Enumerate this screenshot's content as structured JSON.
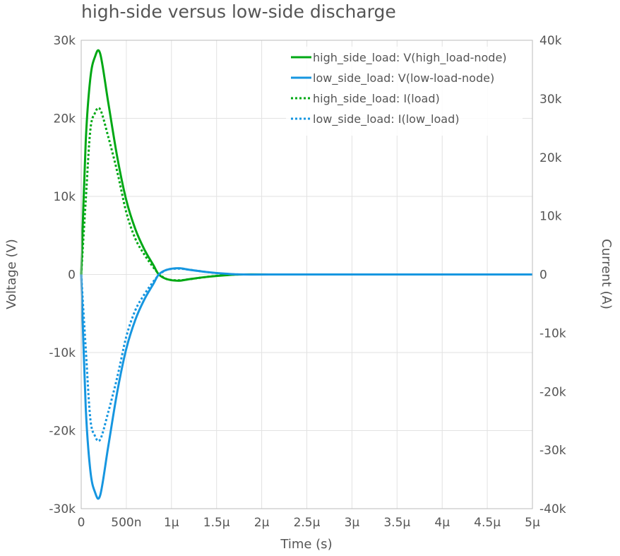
{
  "chart_data": {
    "type": "line",
    "title": "high-side versus low-side discharge",
    "xlabel": "Time (s)",
    "ylabel": "Voltage (V)",
    "y2label": "Current (A)",
    "xlim": [
      0,
      5e-06
    ],
    "ylim": [
      -30000,
      30000
    ],
    "y2lim": [
      -40000,
      40000
    ],
    "grid": true,
    "legend_position": "top-right",
    "x_ticks": [
      {
        "v": 0,
        "label": "0"
      },
      {
        "v": 5e-07,
        "label": "500n"
      },
      {
        "v": 1e-06,
        "label": "1μ"
      },
      {
        "v": 1.5e-06,
        "label": "1.5μ"
      },
      {
        "v": 2e-06,
        "label": "2μ"
      },
      {
        "v": 2.5e-06,
        "label": "2.5μ"
      },
      {
        "v": 3e-06,
        "label": "3μ"
      },
      {
        "v": 3.5e-06,
        "label": "3.5μ"
      },
      {
        "v": 4e-06,
        "label": "4μ"
      },
      {
        "v": 4.5e-06,
        "label": "4.5μ"
      },
      {
        "v": 5e-06,
        "label": "5μ"
      }
    ],
    "y_ticks": [
      {
        "v": 30000,
        "label": "30k"
      },
      {
        "v": 20000,
        "label": "20k"
      },
      {
        "v": 10000,
        "label": "10k"
      },
      {
        "v": 0,
        "label": "0"
      },
      {
        "v": -10000,
        "label": "-10k"
      },
      {
        "v": -20000,
        "label": "-20k"
      },
      {
        "v": -30000,
        "label": "-30k"
      }
    ],
    "y2_ticks": [
      {
        "v": 40000,
        "label": "40k"
      },
      {
        "v": 30000,
        "label": "30k"
      },
      {
        "v": 20000,
        "label": "20k"
      },
      {
        "v": 10000,
        "label": "10k"
      },
      {
        "v": 0,
        "label": "0"
      },
      {
        "v": -10000,
        "label": "-10k"
      },
      {
        "v": -20000,
        "label": "-20k"
      },
      {
        "v": -30000,
        "label": "-30k"
      },
      {
        "v": -40000,
        "label": "-40k"
      }
    ],
    "series": [
      {
        "name": "high_side_load: V(high_load-node)",
        "axis": "left",
        "color": "#00a814",
        "dash": false,
        "x": [
          0,
          5e-08,
          1e-07,
          1.5e-07,
          2.1e-07,
          3e-07,
          4e-07,
          5e-07,
          6e-07,
          7e-07,
          8e-07,
          8.6e-07,
          9.5e-07,
          1.08e-06,
          1.2e-06,
          1.4e-06,
          1.6e-06,
          1.8e-06,
          2.5e-06,
          5e-06
        ],
        "y": [
          0,
          17000,
          25000,
          27800,
          28300,
          22000,
          15000,
          9500,
          5800,
          3200,
          1200,
          0,
          -600,
          -800,
          -600,
          -300,
          -100,
          0,
          0,
          0
        ]
      },
      {
        "name": "low_side_load: V(low-load-node)",
        "axis": "left",
        "color": "#1696e0",
        "dash": false,
        "x": [
          0,
          5e-08,
          1e-07,
          1.5e-07,
          2.1e-07,
          3e-07,
          4e-07,
          5e-07,
          6e-07,
          7e-07,
          8e-07,
          8.6e-07,
          9.5e-07,
          1.08e-06,
          1.2e-06,
          1.4e-06,
          1.6e-06,
          1.8e-06,
          2.5e-06,
          5e-06
        ],
        "y": [
          0,
          -17000,
          -25000,
          -27800,
          -28300,
          -22000,
          -15000,
          -9500,
          -5800,
          -3200,
          -1200,
          0,
          600,
          800,
          600,
          300,
          100,
          0,
          0,
          0
        ]
      },
      {
        "name": "high_side_load: I(load)",
        "axis": "right",
        "color": "#00a814",
        "dash": true,
        "x": [
          0,
          5e-08,
          1e-07,
          1.5e-07,
          2.1e-07,
          3e-07,
          4e-07,
          5e-07,
          6e-07,
          7e-07,
          8e-07,
          8.7e-07,
          9.5e-07,
          1.08e-06,
          1.2e-06,
          1.4e-06,
          1.6e-06,
          1.8e-06,
          2.5e-06,
          5e-06
        ],
        "y": [
          0,
          12600,
          24500,
          27500,
          28200,
          23500,
          17500,
          10600,
          6100,
          3400,
          1200,
          0,
          -800,
          -1000,
          -800,
          -400,
          -100,
          0,
          0,
          0
        ]
      },
      {
        "name": "low_side_load: I(low_load)",
        "axis": "right",
        "color": "#1696e0",
        "dash": true,
        "x": [
          0,
          5e-08,
          1e-07,
          1.5e-07,
          2.1e-07,
          3e-07,
          4e-07,
          5e-07,
          6e-07,
          7e-07,
          8e-07,
          8.7e-07,
          9.5e-07,
          1.08e-06,
          1.2e-06,
          1.4e-06,
          1.6e-06,
          1.8e-06,
          2.5e-06,
          5e-06
        ],
        "y": [
          0,
          -12600,
          -24500,
          -27500,
          -28200,
          -23500,
          -17500,
          -10600,
          -6100,
          -3400,
          -1200,
          0,
          800,
          1000,
          800,
          400,
          100,
          0,
          0,
          0
        ]
      }
    ]
  }
}
